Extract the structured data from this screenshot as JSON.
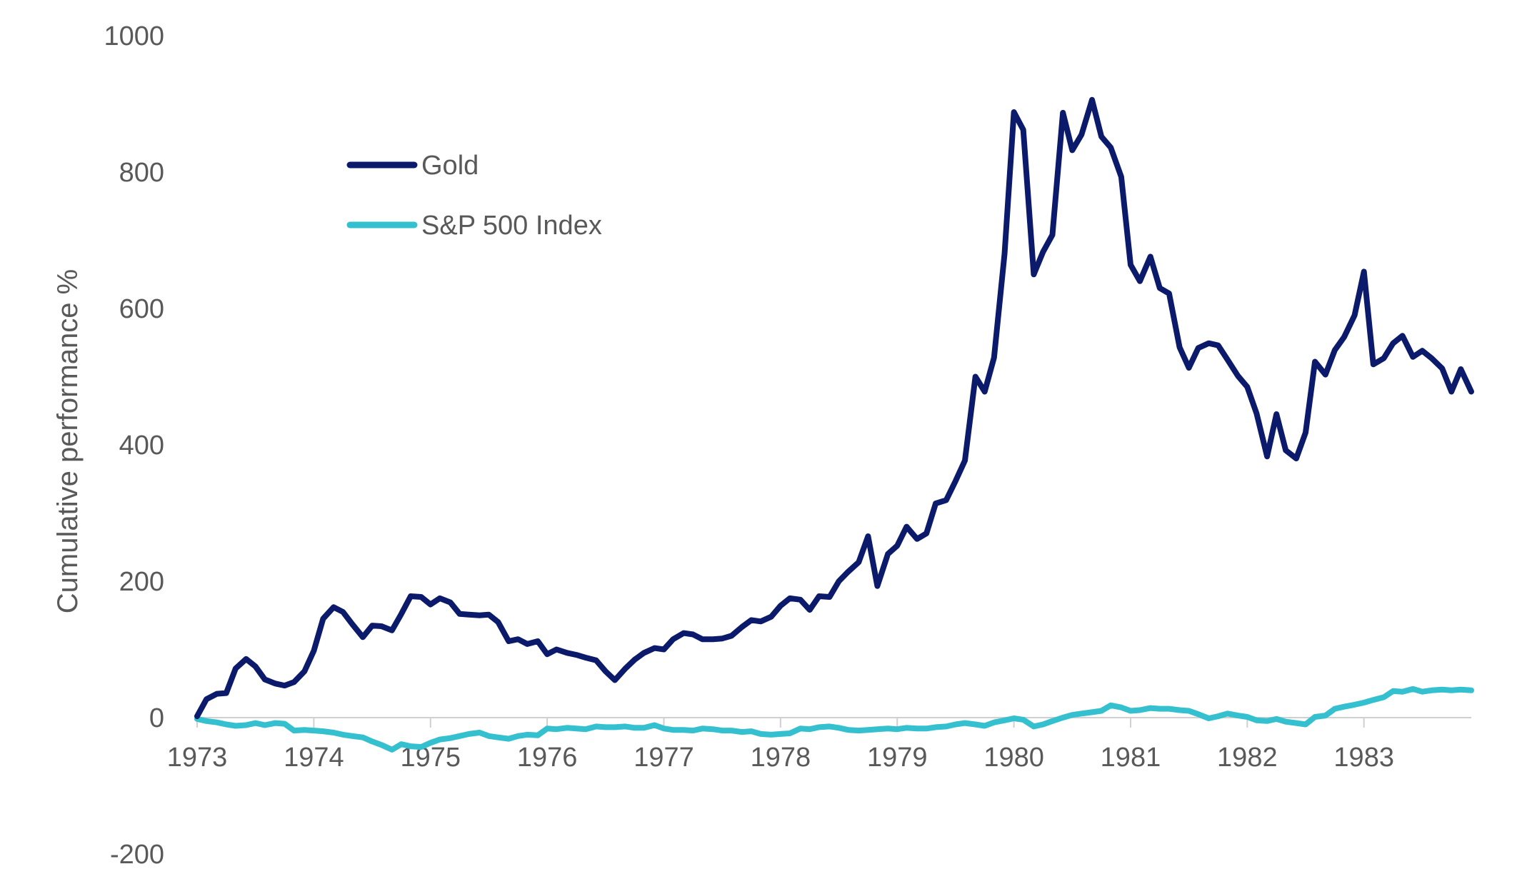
{
  "chart_data": {
    "type": "line",
    "title": "",
    "xlabel": "",
    "ylabel": "Cumulative performance %",
    "xlim": [
      1973.0,
      1983.92
    ],
    "ylim": [
      -200,
      1000
    ],
    "y_ticks": [
      -200,
      0,
      200,
      400,
      600,
      800,
      1000
    ],
    "x_tick_labels": [
      "1973",
      "1974",
      "1975",
      "1976",
      "1977",
      "1978",
      "1979",
      "1980",
      "1981",
      "1982",
      "1983"
    ],
    "grid": false,
    "legend_position": "top-left",
    "series": [
      {
        "name": "Gold",
        "color": "#0b1a6b",
        "x": [
          1973.0,
          1973.08,
          1973.17,
          1973.25,
          1973.33,
          1973.42,
          1973.5,
          1973.58,
          1973.67,
          1973.75,
          1973.83,
          1973.92,
          1974.0,
          1974.08,
          1974.17,
          1974.25,
          1974.33,
          1974.42,
          1974.5,
          1974.58,
          1974.67,
          1974.75,
          1974.83,
          1974.92,
          1975.0,
          1975.08,
          1975.17,
          1975.25,
          1975.33,
          1975.42,
          1975.5,
          1975.58,
          1975.67,
          1975.75,
          1975.83,
          1975.92,
          1976.0,
          1976.08,
          1976.17,
          1976.25,
          1976.33,
          1976.42,
          1976.5,
          1976.58,
          1976.67,
          1976.75,
          1976.83,
          1976.92,
          1977.0,
          1977.08,
          1977.17,
          1977.25,
          1977.33,
          1977.42,
          1977.5,
          1977.58,
          1977.67,
          1977.75,
          1977.83,
          1977.92,
          1978.0,
          1978.08,
          1978.17,
          1978.25,
          1978.33,
          1978.42,
          1978.5,
          1978.58,
          1978.67,
          1978.75,
          1978.83,
          1978.92,
          1979.0,
          1979.08,
          1979.17,
          1979.25,
          1979.33,
          1979.42,
          1979.5,
          1979.58,
          1979.67,
          1979.75,
          1979.83,
          1979.92,
          1980.0,
          1980.08,
          1980.17,
          1980.25,
          1980.33,
          1980.42,
          1980.5,
          1980.58,
          1980.67,
          1980.75,
          1980.83,
          1980.92,
          1981.0,
          1981.08,
          1981.17,
          1981.25,
          1981.33,
          1981.42,
          1981.5,
          1981.58,
          1981.67,
          1981.75,
          1981.83,
          1981.92,
          1982.0,
          1982.08,
          1982.17,
          1982.25,
          1982.33,
          1982.42,
          1982.5,
          1982.58,
          1982.67,
          1982.75,
          1982.83,
          1982.92,
          1983.0,
          1983.08,
          1983.17,
          1983.25,
          1983.33,
          1983.42,
          1983.5,
          1983.58,
          1983.67,
          1983.75,
          1983.83,
          1983.92
        ],
        "values": [
          2,
          27,
          35,
          36,
          72,
          86,
          75,
          56,
          50,
          47,
          52,
          68,
          98,
          145,
          162,
          155,
          137,
          118,
          135,
          134,
          128,
          152,
          178,
          177,
          166,
          175,
          169,
          152,
          151,
          150,
          151,
          140,
          112,
          115,
          108,
          112,
          93,
          100,
          95,
          92,
          88,
          84,
          68,
          55,
          72,
          85,
          95,
          102,
          100,
          115,
          124,
          122,
          115,
          115,
          116,
          120,
          133,
          143,
          141,
          148,
          164,
          175,
          173,
          158,
          178,
          177,
          200,
          214,
          228,
          266,
          193,
          240,
          252,
          280,
          262,
          270,
          314,
          319,
          347,
          377,
          500,
          478,
          528,
          680,
          888,
          862,
          650,
          683,
          708,
          887,
          832,
          855,
          906,
          852,
          836,
          793,
          664,
          640,
          676,
          630,
          622,
          543,
          513,
          542,
          549,
          546,
          525,
          501,
          485,
          446,
          383,
          445,
          392,
          380,
          418,
          522,
          503,
          539,
          558,
          590,
          654,
          518,
          527,
          549,
          560,
          529,
          538,
          527,
          512,
          478,
          511,
          478
        ]
      },
      {
        "name": "S&P 500 Index",
        "color": "#35c0cf",
        "x": [
          1973.0,
          1973.08,
          1973.17,
          1973.25,
          1973.33,
          1973.42,
          1973.5,
          1973.58,
          1973.67,
          1973.75,
          1973.83,
          1973.92,
          1974.0,
          1974.08,
          1974.17,
          1974.25,
          1974.33,
          1974.42,
          1974.5,
          1974.58,
          1974.67,
          1974.75,
          1974.83,
          1974.92,
          1975.0,
          1975.08,
          1975.17,
          1975.25,
          1975.33,
          1975.42,
          1975.5,
          1975.58,
          1975.67,
          1975.75,
          1975.83,
          1975.92,
          1976.0,
          1976.08,
          1976.17,
          1976.25,
          1976.33,
          1976.42,
          1976.5,
          1976.58,
          1976.67,
          1976.75,
          1976.83,
          1976.92,
          1977.0,
          1977.08,
          1977.17,
          1977.25,
          1977.33,
          1977.42,
          1977.5,
          1977.58,
          1977.67,
          1977.75,
          1977.83,
          1977.92,
          1978.0,
          1978.08,
          1978.17,
          1978.25,
          1978.33,
          1978.42,
          1978.5,
          1978.58,
          1978.67,
          1978.75,
          1978.83,
          1978.92,
          1979.0,
          1979.08,
          1979.17,
          1979.25,
          1979.33,
          1979.42,
          1979.5,
          1979.58,
          1979.67,
          1979.75,
          1979.83,
          1979.92,
          1980.0,
          1980.08,
          1980.17,
          1980.25,
          1980.33,
          1980.42,
          1980.5,
          1980.58,
          1980.67,
          1980.75,
          1980.83,
          1980.92,
          1981.0,
          1981.08,
          1981.17,
          1981.25,
          1981.33,
          1981.42,
          1981.5,
          1981.58,
          1981.67,
          1981.75,
          1981.83,
          1981.92,
          1982.0,
          1982.08,
          1982.17,
          1982.25,
          1982.33,
          1982.42,
          1982.5,
          1982.58,
          1982.67,
          1982.75,
          1982.83,
          1982.92,
          1983.0,
          1983.08,
          1983.17,
          1983.25,
          1983.33,
          1983.42,
          1983.5,
          1983.58,
          1983.67,
          1983.75,
          1983.83,
          1983.92
        ],
        "values": [
          -2,
          -5,
          -7,
          -10,
          -12,
          -11,
          -8,
          -11,
          -8,
          -9,
          -19,
          -18,
          -19,
          -20,
          -22,
          -25,
          -27,
          -29,
          -35,
          -40,
          -47,
          -39,
          -42,
          -43,
          -37,
          -32,
          -30,
          -27,
          -24,
          -22,
          -27,
          -29,
          -31,
          -27,
          -25,
          -26,
          -16,
          -17,
          -15,
          -16,
          -17,
          -13,
          -14,
          -14,
          -13,
          -15,
          -15,
          -11,
          -16,
          -18,
          -18,
          -19,
          -16,
          -17,
          -19,
          -19,
          -21,
          -20,
          -24,
          -25,
          -24,
          -23,
          -16,
          -17,
          -14,
          -13,
          -15,
          -18,
          -19,
          -18,
          -17,
          -16,
          -17,
          -15,
          -16,
          -16,
          -14,
          -13,
          -10,
          -8,
          -10,
          -12,
          -7,
          -4,
          -1,
          -3,
          -13,
          -10,
          -5,
          0,
          4,
          6,
          8,
          10,
          18,
          15,
          10,
          11,
          14,
          13,
          13,
          11,
          10,
          5,
          -1,
          2,
          6,
          3,
          1,
          -4,
          -5,
          -2,
          -6,
          -8,
          -10,
          1,
          3,
          13,
          16,
          19,
          22,
          26,
          30,
          39,
          38,
          42,
          38,
          40,
          41,
          40,
          41,
          40
        ]
      }
    ]
  }
}
